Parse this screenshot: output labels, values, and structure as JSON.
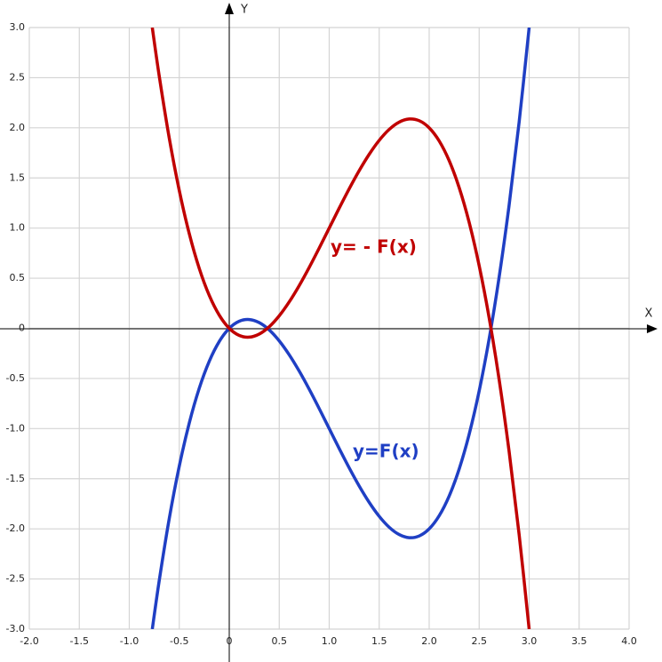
{
  "chart_data": {
    "type": "line",
    "x_label": "X",
    "y_label": "Y",
    "x": [
      -0.77,
      -0.7,
      -0.6,
      -0.5,
      -0.4,
      -0.3,
      -0.2,
      -0.1,
      0,
      0.1,
      0.2,
      0.3,
      0.4,
      0.5,
      0.6,
      0.7,
      0.8,
      0.9,
      1.0,
      1.1,
      1.2,
      1.3,
      1.4,
      1.5,
      1.6,
      1.7,
      1.8,
      1.9,
      2.0,
      2.1,
      2.2,
      2.3,
      2.4,
      2.5,
      2.6,
      2.7,
      2.8,
      2.9,
      3.0
    ],
    "series": [
      {
        "name": "y=F(x)",
        "color": "#1f3fc4",
        "values": [
          -3.0,
          -2.513,
          -1.896,
          -1.375,
          -0.944,
          -0.597,
          -0.328,
          -0.131,
          0,
          0.071,
          0.088,
          0.057,
          -0.016,
          -0.125,
          -0.264,
          -0.427,
          -0.608,
          -0.801,
          -1.0,
          -1.199,
          -1.392,
          -1.573,
          -1.736,
          -1.875,
          -1.984,
          -2.057,
          -2.088,
          -2.071,
          -2.0,
          -1.869,
          -1.672,
          -1.403,
          -1.056,
          -0.625,
          -0.104,
          0.513,
          1.232,
          2.059,
          3.0
        ]
      },
      {
        "name": "y= - F(x)",
        "color": "#c00000",
        "values": [
          3.0,
          2.513,
          1.896,
          1.375,
          0.944,
          0.597,
          0.328,
          0.131,
          0,
          -0.071,
          -0.088,
          -0.057,
          0.016,
          0.125,
          0.264,
          0.427,
          0.608,
          0.801,
          1.0,
          1.199,
          1.392,
          1.573,
          1.736,
          1.875,
          1.984,
          2.057,
          2.088,
          2.071,
          2.0,
          1.869,
          1.672,
          1.403,
          1.056,
          0.625,
          0.104,
          -0.513,
          -1.232,
          -2.059,
          -3.0
        ]
      }
    ],
    "xlim": [
      -2,
      4
    ],
    "ylim": [
      -3,
      3
    ],
    "xticks": [
      {
        "value": -2,
        "label": "-2.0"
      },
      -1.5,
      {
        "value": -1,
        "label": "-1.0"
      },
      -0.5,
      0,
      0.5,
      {
        "value": 1,
        "label": "1.0"
      },
      1.5,
      {
        "value": 2,
        "label": "2.0"
      },
      2.5,
      {
        "value": 3,
        "label": "3.0"
      },
      3.5,
      {
        "value": 4,
        "label": "4.0"
      }
    ],
    "yticks": [
      {
        "value": -3,
        "label": "-3.0"
      },
      -2.5,
      {
        "value": -2,
        "label": "-2.0"
      },
      -1.5,
      {
        "value": -1,
        "label": "-1.0"
      },
      -0.5,
      0,
      0.5,
      {
        "value": 1,
        "label": "1.0"
      },
      1.5,
      {
        "value": 2,
        "label": "2.0"
      },
      2.5,
      {
        "value": 3,
        "label": "3.0"
      }
    ],
    "grid": true
  }
}
